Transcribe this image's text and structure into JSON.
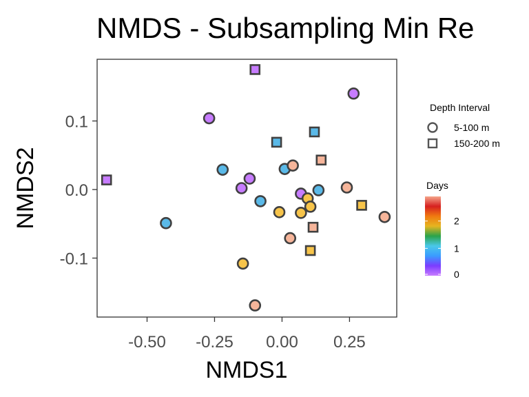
{
  "chart_data": {
    "type": "scatter",
    "title": "NMDS - Subsampling Min Re",
    "xlabel": "NMDS1",
    "ylabel": "NMDS2",
    "xlim": [
      -0.685,
      0.425
    ],
    "ylim": [
      -0.186,
      0.19
    ],
    "xticks": [
      -0.5,
      -0.25,
      0.0,
      0.25
    ],
    "xtick_labels": [
      "-0.50",
      "-0.25",
      "0.00",
      "0.25"
    ],
    "yticks": [
      0.1,
      0.0,
      -0.1
    ],
    "ytick_labels": [
      "0.1",
      "0.0",
      "-0.1"
    ],
    "grid": false,
    "legend_placement": "right",
    "shape_legend": {
      "title": "Depth Interval",
      "entries": [
        {
          "shape": "circle",
          "label": "5-100 m"
        },
        {
          "shape": "square",
          "label": "150-200 m"
        }
      ]
    },
    "color_legend": {
      "title": "Days",
      "ticks": [
        0,
        1,
        2
      ],
      "tick_labels": [
        "0",
        "1",
        "2"
      ],
      "range": [
        0,
        2.9
      ],
      "gradient_stops": [
        "#c77cff",
        "#7b3cff",
        "#3a9bff",
        "#4ac8e8",
        "#2aa34a",
        "#e6b520",
        "#f07a10",
        "#d62020",
        "#f5a58a"
      ]
    },
    "colors": {
      "day0": "#c77cff",
      "day1": "#5ab9e8",
      "day2": "#f7c44a",
      "day3": "#f6b59a",
      "point_stroke": "#404040"
    },
    "points": [
      {
        "x": -0.1,
        "y": 0.175,
        "shape": "square",
        "group": "day0"
      },
      {
        "x": 0.265,
        "y": 0.14,
        "shape": "circle",
        "group": "day0"
      },
      {
        "x": -0.27,
        "y": 0.104,
        "shape": "circle",
        "group": "day0"
      },
      {
        "x": -0.65,
        "y": 0.014,
        "shape": "square",
        "group": "day0"
      },
      {
        "x": -0.12,
        "y": 0.016,
        "shape": "circle",
        "group": "day0"
      },
      {
        "x": -0.15,
        "y": 0.002,
        "shape": "circle",
        "group": "day0"
      },
      {
        "x": 0.07,
        "y": -0.006,
        "shape": "circle",
        "group": "day0"
      },
      {
        "x": 0.12,
        "y": 0.084,
        "shape": "square",
        "group": "day1"
      },
      {
        "x": -0.02,
        "y": 0.069,
        "shape": "square",
        "group": "day1"
      },
      {
        "x": -0.22,
        "y": 0.029,
        "shape": "circle",
        "group": "day1"
      },
      {
        "x": 0.01,
        "y": 0.03,
        "shape": "circle",
        "group": "day1"
      },
      {
        "x": 0.135,
        "y": -0.001,
        "shape": "circle",
        "group": "day1"
      },
      {
        "x": -0.08,
        "y": -0.017,
        "shape": "circle",
        "group": "day1"
      },
      {
        "x": -0.43,
        "y": -0.049,
        "shape": "circle",
        "group": "day1"
      },
      {
        "x": 0.095,
        "y": -0.013,
        "shape": "circle",
        "group": "day2"
      },
      {
        "x": 0.105,
        "y": -0.025,
        "shape": "circle",
        "group": "day2"
      },
      {
        "x": 0.295,
        "y": -0.023,
        "shape": "square",
        "group": "day2"
      },
      {
        "x": -0.01,
        "y": -0.033,
        "shape": "circle",
        "group": "day2"
      },
      {
        "x": 0.07,
        "y": -0.034,
        "shape": "circle",
        "group": "day2"
      },
      {
        "x": 0.105,
        "y": -0.089,
        "shape": "square",
        "group": "day2"
      },
      {
        "x": -0.145,
        "y": -0.108,
        "shape": "circle",
        "group": "day2"
      },
      {
        "x": 0.04,
        "y": 0.035,
        "shape": "circle",
        "group": "day3"
      },
      {
        "x": 0.145,
        "y": 0.043,
        "shape": "square",
        "group": "day3"
      },
      {
        "x": 0.24,
        "y": 0.003,
        "shape": "circle",
        "group": "day3"
      },
      {
        "x": 0.38,
        "y": -0.04,
        "shape": "circle",
        "group": "day3"
      },
      {
        "x": 0.115,
        "y": -0.055,
        "shape": "square",
        "group": "day3"
      },
      {
        "x": 0.03,
        "y": -0.071,
        "shape": "circle",
        "group": "day3"
      },
      {
        "x": -0.1,
        "y": -0.169,
        "shape": "circle",
        "group": "day3"
      }
    ]
  }
}
